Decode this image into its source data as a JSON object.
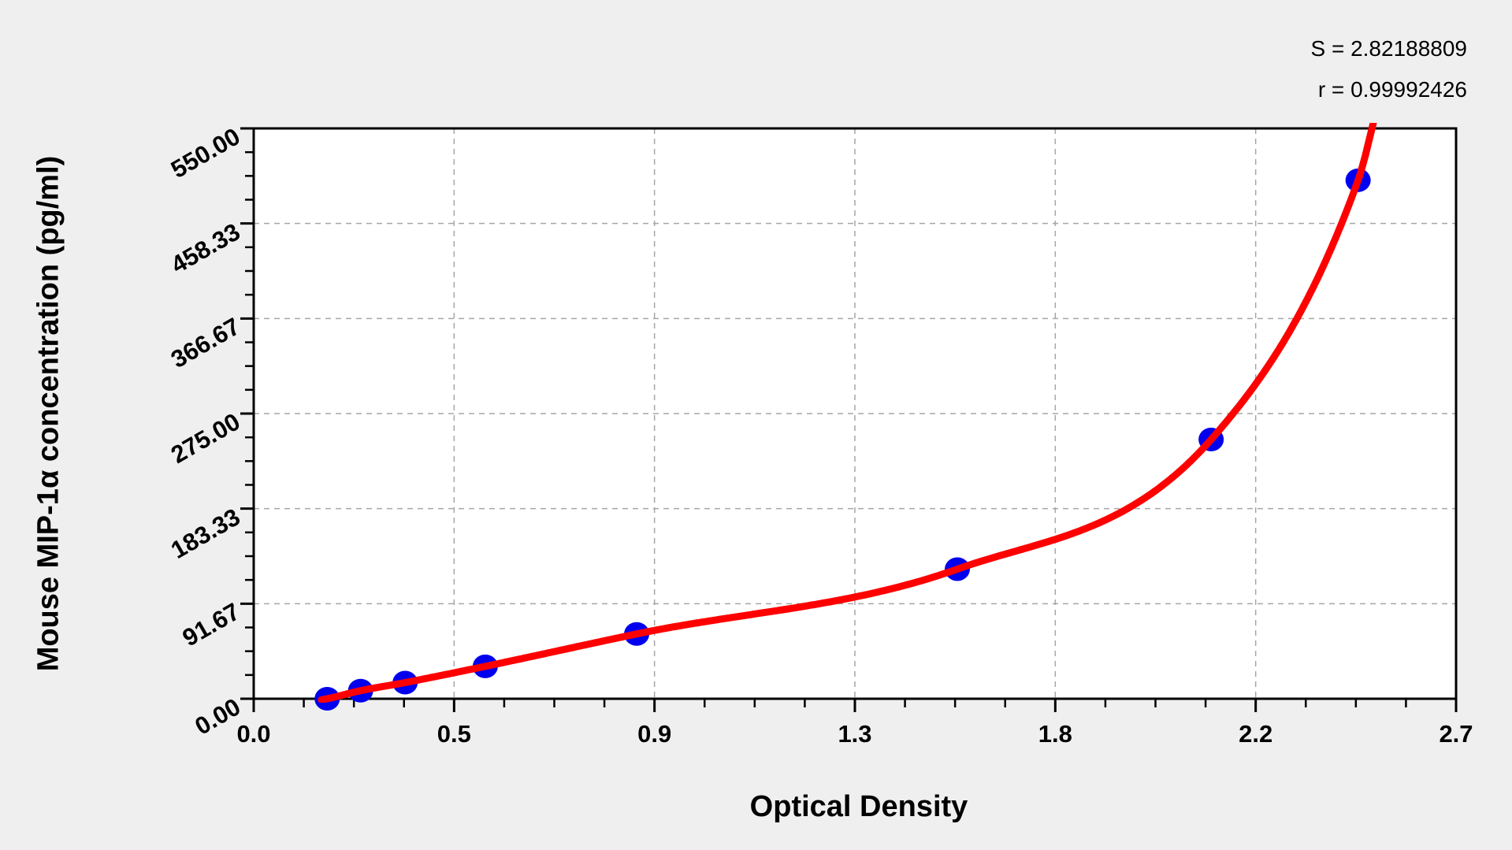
{
  "chart_data": {
    "type": "scatter",
    "title": "",
    "xlabel": "Optical Density",
    "ylabel": "Mouse MIP-1α concentration (pg/ml)",
    "legend": "none",
    "grid": "dashed-at-major-ticks",
    "x_axis": {
      "min": 0,
      "max": 2.7,
      "tick_values": [
        0,
        0.45,
        0.9,
        1.35,
        1.8,
        2.25,
        2.7
      ],
      "tick_labels": [
        "0.0",
        "0.5",
        "0.9",
        "1.3",
        "1.8",
        "2.2",
        "2.7"
      ],
      "minor_ticks_per_interval": 3
    },
    "y_axis": {
      "min": 0,
      "max": 550,
      "tick_values": [
        0,
        91.667,
        183.333,
        275,
        366.667,
        458.333,
        550
      ],
      "tick_labels": [
        "0.00",
        "91.67",
        "183.33",
        "275.00",
        "366.67",
        "458.33",
        "550.00"
      ],
      "minor_ticks_per_interval": 3
    },
    "series": [
      {
        "name": "standard-points",
        "marker": "circle",
        "color": "#0000ee",
        "points": [
          {
            "x": 0.165,
            "y": 0
          },
          {
            "x": 0.24,
            "y": 7.8
          },
          {
            "x": 0.34,
            "y": 15.6
          },
          {
            "x": 0.52,
            "y": 31.25
          },
          {
            "x": 0.86,
            "y": 62.5
          },
          {
            "x": 1.58,
            "y": 125
          },
          {
            "x": 2.15,
            "y": 250
          },
          {
            "x": 2.48,
            "y": 500
          }
        ]
      }
    ],
    "fit_curve": {
      "color": "#ff0000",
      "x_start": 0.152,
      "x_end": 2.52,
      "note": "monotone smooth fit through standard points, exits top of plot near OD 2.51"
    },
    "annotations": {
      "s_line": "S = 2.82188809",
      "r_line": "r = 0.99992426"
    },
    "colors": {
      "background": "#efefef",
      "plot_background": "#ffffff",
      "frame": "#000000",
      "grid": "#a6a6a6",
      "curve": "#ff0000",
      "points": "#0000ee"
    }
  }
}
